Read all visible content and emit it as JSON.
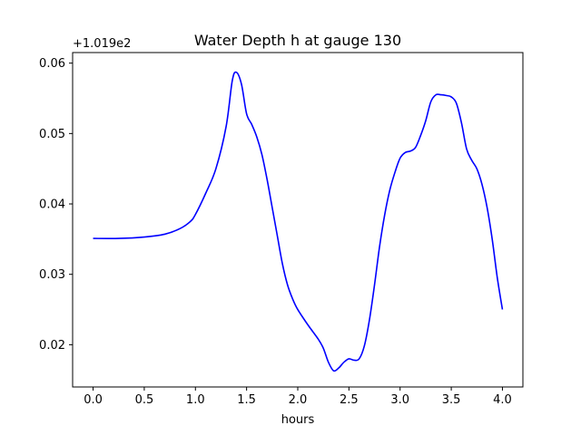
{
  "chart_data": {
    "type": "line",
    "title": "Water Depth h at gauge 130",
    "xlabel": "hours",
    "ylabel": "",
    "y_offset_label": "+1.019e2",
    "xlim": [
      -0.2,
      4.2
    ],
    "ylim": [
      0.014,
      0.0615
    ],
    "x_ticks": [
      0.0,
      0.5,
      1.0,
      1.5,
      2.0,
      2.5,
      3.0,
      3.5,
      4.0
    ],
    "x_tick_labels": [
      "0.0",
      "0.5",
      "1.0",
      "1.5",
      "2.0",
      "2.5",
      "3.0",
      "3.5",
      "4.0"
    ],
    "y_ticks": [
      0.02,
      0.03,
      0.04,
      0.05,
      0.06
    ],
    "y_tick_labels": [
      "0.02",
      "0.03",
      "0.04",
      "0.05",
      "0.06"
    ],
    "grid": false,
    "line_color": "#0000ff",
    "series": [
      {
        "x": [
          0.0,
          0.25,
          0.5,
          0.7,
          0.85,
          0.95,
          1.0,
          1.1,
          1.2,
          1.3,
          1.36,
          1.4,
          1.45,
          1.5,
          1.55,
          1.6,
          1.65,
          1.7,
          1.75,
          1.8,
          1.85,
          1.9,
          1.95,
          2.0,
          2.1,
          2.2,
          2.25,
          2.3,
          2.35,
          2.4,
          2.45,
          2.5,
          2.55,
          2.6,
          2.65,
          2.7,
          2.75,
          2.8,
          2.85,
          2.9,
          2.95,
          3.0,
          3.05,
          3.1,
          3.15,
          3.2,
          3.25,
          3.3,
          3.35,
          3.4,
          3.45,
          3.5,
          3.55,
          3.6,
          3.65,
          3.7,
          3.75,
          3.8,
          3.85,
          3.9,
          3.95,
          4.0
        ],
        "y": [
          0.0351,
          0.0351,
          0.0353,
          0.0357,
          0.0365,
          0.0375,
          0.0385,
          0.0415,
          0.045,
          0.051,
          0.0575,
          0.0587,
          0.057,
          0.0528,
          0.0513,
          0.0495,
          0.047,
          0.0435,
          0.0395,
          0.0355,
          0.0315,
          0.0285,
          0.0265,
          0.025,
          0.0228,
          0.0208,
          0.0195,
          0.0175,
          0.0163,
          0.0167,
          0.0175,
          0.018,
          0.0178,
          0.018,
          0.0198,
          0.0235,
          0.0285,
          0.034,
          0.0385,
          0.042,
          0.0445,
          0.0465,
          0.0473,
          0.0475,
          0.048,
          0.0497,
          0.0518,
          0.0545,
          0.0555,
          0.0555,
          0.0554,
          0.0552,
          0.0543,
          0.0515,
          0.0478,
          0.0462,
          0.045,
          0.0428,
          0.0395,
          0.035,
          0.0295,
          0.025
        ]
      }
    ]
  }
}
